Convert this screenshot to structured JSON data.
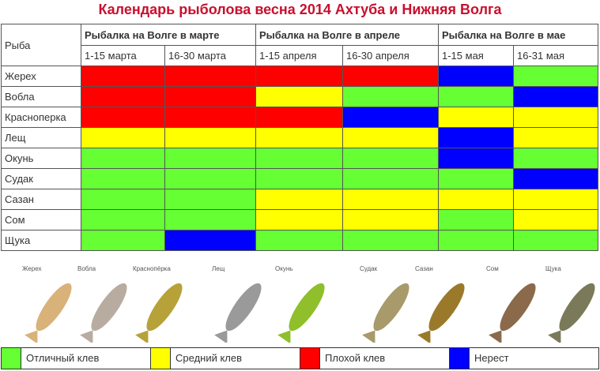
{
  "title": "Календарь рыболова весна 2014 Ахтуба и Нижняя Волга",
  "header": {
    "fish": "Рыба",
    "months": [
      "Рыбалка на Волге в марте",
      "Рыбалка на Волге в апреле",
      "Рыбалка на Волге в мае"
    ],
    "periods": [
      "1-15 марта",
      "16-30 марта",
      "1-15 апреля",
      "16-30 апреля",
      "1-15 мая",
      "16-31 мая"
    ]
  },
  "rows": [
    {
      "fish": "Жерех",
      "cells": [
        "R",
        "R",
        "R",
        "R",
        "B",
        "G"
      ]
    },
    {
      "fish": "Вобла",
      "cells": [
        "R",
        "R",
        "Y",
        "G",
        "G",
        "B"
      ]
    },
    {
      "fish": "Красноперка",
      "cells": [
        "R",
        "R",
        "R",
        "B",
        "Y",
        "Y"
      ]
    },
    {
      "fish": "Лещ",
      "cells": [
        "Y",
        "Y",
        "Y",
        "Y",
        "B",
        "Y"
      ]
    },
    {
      "fish": "Окунь",
      "cells": [
        "G",
        "G",
        "G",
        "G",
        "B",
        "G"
      ]
    },
    {
      "fish": "Судак",
      "cells": [
        "G",
        "G",
        "G",
        "G",
        "G",
        "B"
      ]
    },
    {
      "fish": "Сазан",
      "cells": [
        "G",
        "G",
        "Y",
        "Y",
        "Y",
        "Y"
      ]
    },
    {
      "fish": "Сом",
      "cells": [
        "G",
        "G",
        "Y",
        "Y",
        "G",
        "Y"
      ]
    },
    {
      "fish": "Щука",
      "cells": [
        "G",
        "B",
        "G",
        "G",
        "G",
        "G"
      ]
    }
  ],
  "images": [
    {
      "label": "Жерех",
      "color": "#d9b27a"
    },
    {
      "label": "Вобла",
      "color": "#b8aca0"
    },
    {
      "label": "Краснопёрка",
      "color": "#b7a23a"
    },
    {
      "label": "Лещ",
      "color": "#9a9a9a"
    },
    {
      "label": "Окунь",
      "color": "#8fbf2a"
    },
    {
      "label": "Судак",
      "color": "#a89a6a"
    },
    {
      "label": "Сазан",
      "color": "#9a7a2a"
    },
    {
      "label": "Сом",
      "color": "#8a6a4a"
    },
    {
      "label": "Щука",
      "color": "#7a7a5a"
    }
  ],
  "legend": [
    {
      "code": "G",
      "label": "Отличный клев",
      "color": "#66ff33"
    },
    {
      "code": "Y",
      "label": "Средний клев",
      "color": "#ffff00"
    },
    {
      "code": "R",
      "label": "Плохой клев",
      "color": "#ff0000"
    },
    {
      "code": "B",
      "label": "Нерест",
      "color": "#0000ff"
    }
  ]
}
